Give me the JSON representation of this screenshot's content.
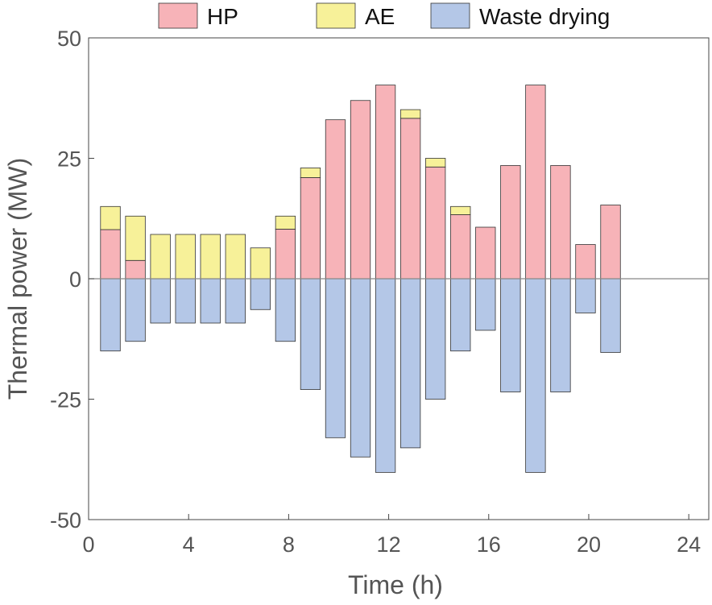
{
  "chart_data": {
    "type": "bar",
    "stacked": true,
    "title": "",
    "xlabel": "Time (h)",
    "ylabel": "Thermal power (MW)",
    "xlim": [
      0,
      24.8
    ],
    "ylim": [
      -50,
      50
    ],
    "xticks": [
      0,
      4,
      8,
      12,
      16,
      20,
      24
    ],
    "yticks": [
      -50,
      -25,
      0,
      25,
      50
    ],
    "xtick_labels": [
      "0",
      "4",
      "8",
      "12",
      "16",
      "20",
      "24"
    ],
    "ytick_labels": [
      "-50",
      "-25",
      "0",
      "25",
      "50"
    ],
    "x": [
      1,
      2,
      3,
      4,
      5,
      6,
      7,
      8,
      9,
      10,
      11,
      12,
      13,
      14,
      15,
      16,
      17,
      18,
      19,
      20,
      21
    ],
    "series": [
      {
        "name": "HP",
        "color": "#f7b3b8",
        "values": [
          10.2,
          3.8,
          0,
          0,
          0,
          0,
          0,
          10.3,
          21.0,
          33.0,
          37.0,
          40.2,
          33.3,
          23.2,
          13.3,
          10.7,
          23.5,
          40.2,
          23.5,
          7.1,
          15.3
        ]
      },
      {
        "name": "AE",
        "color": "#f7f199",
        "values": [
          4.8,
          9.2,
          9.2,
          9.2,
          9.2,
          9.2,
          6.4,
          2.7,
          2.0,
          0,
          0,
          0,
          1.8,
          1.8,
          1.7,
          0,
          0,
          0,
          0,
          0,
          0
        ]
      },
      {
        "name": "Waste drying",
        "color": "#b4c7e7",
        "values": [
          -15.0,
          -13.0,
          -9.2,
          -9.2,
          -9.2,
          -9.2,
          -6.4,
          -13.0,
          -23.0,
          -33.0,
          -37.0,
          -40.2,
          -35.1,
          -25.0,
          -15.0,
          -10.7,
          -23.5,
          -40.2,
          -23.5,
          -7.1,
          -15.3
        ]
      }
    ],
    "legend": "top"
  }
}
